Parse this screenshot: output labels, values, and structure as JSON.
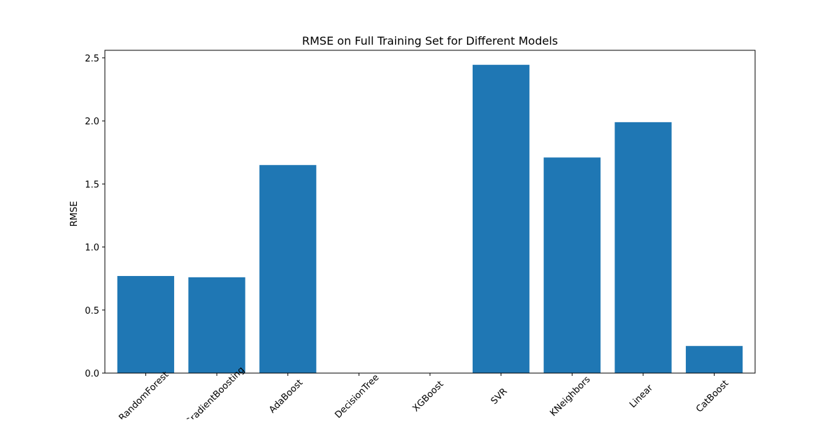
{
  "chart_data": {
    "type": "bar",
    "title": "RMSE on Full Training Set for Different Models",
    "xlabel": "",
    "ylabel": "RMSE",
    "categories": [
      "RandomForest",
      "GradientBoosting",
      "AdaBoost",
      "DecisionTree",
      "XGBoost",
      "SVR",
      "KNeighbors",
      "Linear",
      "CatBoost"
    ],
    "values": [
      0.77,
      0.76,
      1.65,
      0.0,
      0.0,
      2.445,
      1.71,
      1.99,
      0.215
    ],
    "ylim": [
      0,
      2.56
    ],
    "yticks": [
      0.0,
      0.5,
      1.0,
      1.5,
      2.0,
      2.5
    ],
    "ytick_labels": [
      "0.0",
      "0.5",
      "1.0",
      "1.5",
      "2.0",
      "2.5"
    ],
    "bar_color": "#1f77b4",
    "grid": false,
    "legend": "none"
  }
}
